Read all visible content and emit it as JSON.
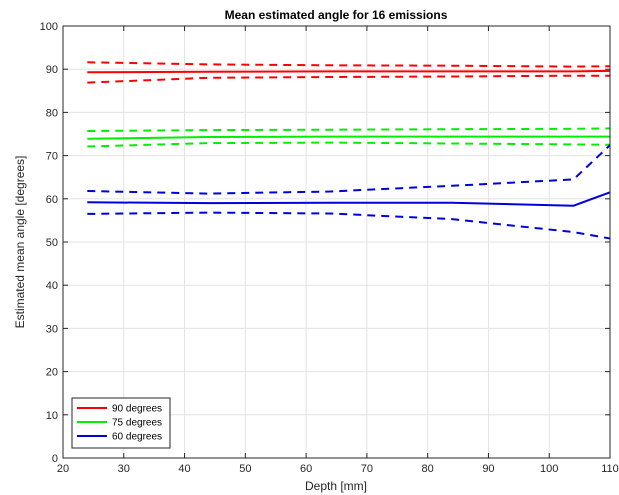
{
  "chart_data": {
    "type": "line",
    "title": "Mean estimated angle for 16 emissions",
    "xlabel": "Depth [mm]",
    "ylabel": "Estimated mean angle [degrees]",
    "xlim": [
      20,
      110
    ],
    "ylim": [
      0,
      100
    ],
    "xticks": [
      20,
      30,
      40,
      50,
      60,
      70,
      80,
      90,
      100,
      110
    ],
    "yticks": [
      0,
      10,
      20,
      30,
      40,
      50,
      60,
      70,
      80,
      90,
      100
    ],
    "grid": true,
    "legend_position": "bottom-left",
    "x": [
      24,
      44,
      64,
      84,
      104,
      110
    ],
    "series": [
      {
        "name": "90 degrees",
        "color": "#ff0000",
        "mean": [
          89.3,
          89.4,
          89.5,
          89.5,
          89.5,
          89.6
        ],
        "upper": [
          91.6,
          91.1,
          90.9,
          90.8,
          90.6,
          90.7
        ],
        "lower": [
          86.9,
          88.0,
          88.2,
          88.3,
          88.5,
          88.5
        ]
      },
      {
        "name": "75 degrees",
        "color": "#00ee00",
        "mean": [
          73.9,
          74.3,
          74.4,
          74.4,
          74.4,
          74.4
        ],
        "upper": [
          75.7,
          75.9,
          76.0,
          76.1,
          76.2,
          76.3
        ],
        "lower": [
          72.1,
          72.9,
          73.0,
          72.8,
          72.6,
          72.5
        ]
      },
      {
        "name": "60 degrees",
        "color": "#0000dd",
        "mean": [
          59.2,
          59.0,
          59.1,
          59.1,
          58.4,
          61.5
        ],
        "upper": [
          61.8,
          61.2,
          61.7,
          63.0,
          64.5,
          72.4
        ],
        "lower": [
          56.5,
          56.8,
          56.6,
          55.3,
          52.3,
          50.8
        ]
      }
    ]
  }
}
